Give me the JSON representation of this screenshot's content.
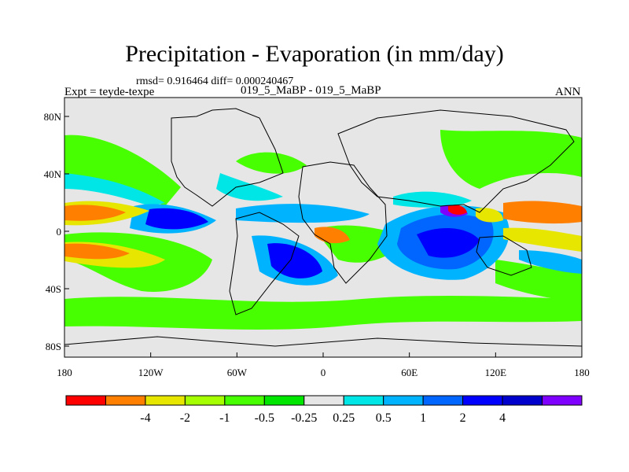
{
  "title": "Precipitation - Evaporation (in mm/day)",
  "stats": "rmsd= 0.916464 diff= 0.000240467",
  "left_label": "Expt = teyde-texpe",
  "center_label": "019_5_MaBP - 019_5_MaBP",
  "right_label": "ANN",
  "map": {
    "lat_ticks": [
      "80N",
      "40N",
      "0",
      "40S",
      "80S"
    ],
    "lon_ticks": [
      "180",
      "120W",
      "60W",
      "0",
      "60E",
      "120E",
      "180"
    ],
    "land_color": "#e6e6e6"
  },
  "colorbar": {
    "colors": [
      "#ff0000",
      "#ff7f00",
      "#e6e600",
      "#a6ff00",
      "#47ff00",
      "#00e600",
      "#e6e6e6",
      "#00e6e6",
      "#00b3ff",
      "#0066ff",
      "#0000ff",
      "#0000cc",
      "#8000ff"
    ],
    "labels": [
      "-4",
      "-2",
      "-1",
      "-0.5",
      "-0.25",
      "0.25",
      "0.5",
      "1",
      "2",
      "4"
    ]
  }
}
